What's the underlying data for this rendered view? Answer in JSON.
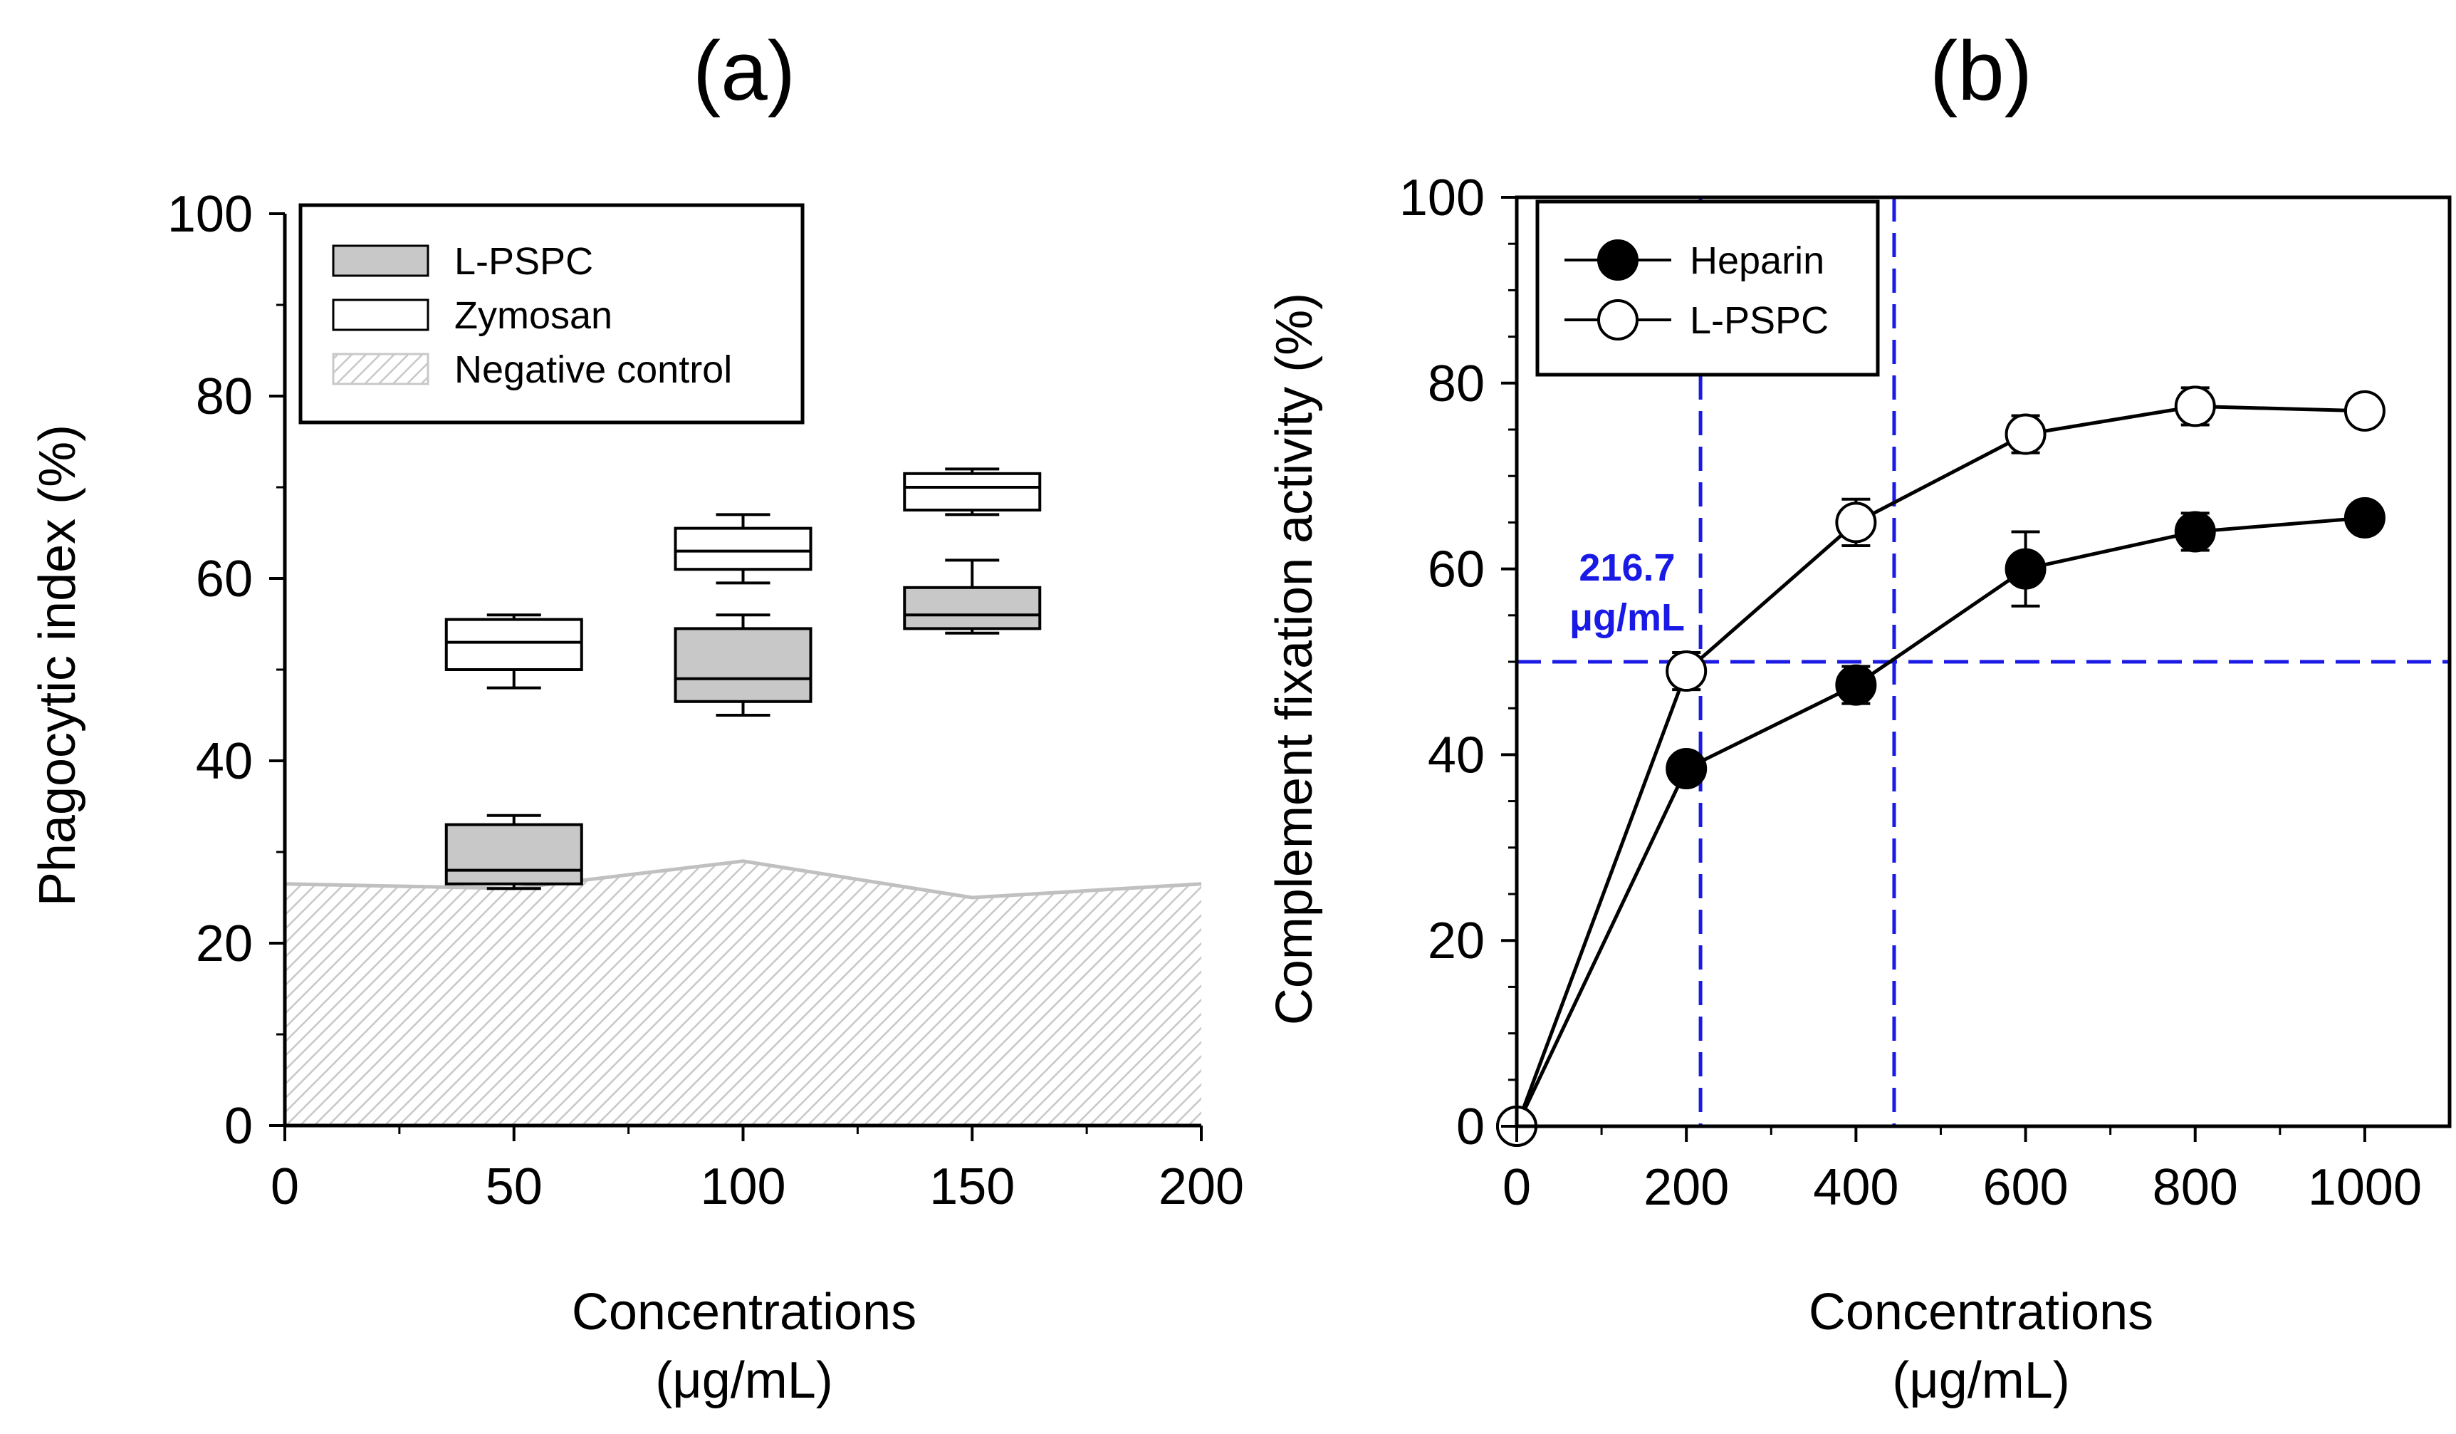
{
  "chart_data": [
    {
      "panel_label": "(a)",
      "type": "box",
      "xlabel_line1": "Concentrations",
      "xlabel_line2": "(μg/mL)",
      "ylabel": "Phagocytic index (%)",
      "xlim": [
        0,
        200
      ],
      "ylim": [
        0,
        100
      ],
      "x_ticks": [
        0,
        50,
        100,
        150,
        200
      ],
      "y_ticks": [
        0,
        20,
        40,
        60,
        80,
        100
      ],
      "legend_position": "top-left",
      "legend": [
        {
          "label": "L-PSPC",
          "swatch": "gray"
        },
        {
          "label": "Zymosan",
          "swatch": "white"
        },
        {
          "label": "Negative control",
          "swatch": "hatched"
        }
      ],
      "negative_control": {
        "name": "Negative control",
        "x": [
          0,
          50,
          100,
          150,
          200
        ],
        "y": [
          26.5,
          26.0,
          29.0,
          25.0,
          26.5
        ]
      },
      "series": [
        {
          "name": "L-PSPC",
          "fill": "#c8c8c8",
          "boxes": [
            {
              "x": 50,
              "whisker_low": 26,
              "q1": 26.5,
              "median": 28,
              "q3": 33,
              "whisker_high": 34
            },
            {
              "x": 100,
              "whisker_low": 45,
              "q1": 46.5,
              "median": 49,
              "q3": 54.5,
              "whisker_high": 56
            },
            {
              "x": 150,
              "whisker_low": 54,
              "q1": 54.5,
              "median": 56,
              "q3": 59,
              "whisker_high": 62
            }
          ]
        },
        {
          "name": "Zymosan",
          "fill": "#ffffff",
          "boxes": [
            {
              "x": 50,
              "whisker_low": 48,
              "q1": 50,
              "median": 53,
              "q3": 55.5,
              "whisker_high": 56
            },
            {
              "x": 100,
              "whisker_low": 59.5,
              "q1": 61,
              "median": 63,
              "q3": 65.5,
              "whisker_high": 67
            },
            {
              "x": 150,
              "whisker_low": 67,
              "q1": 67.5,
              "median": 70,
              "q3": 71.5,
              "whisker_high": 72
            }
          ]
        }
      ]
    },
    {
      "panel_label": "(b)",
      "type": "line",
      "xlabel_line1": "Concentrations",
      "xlabel_line2": "(μg/mL)",
      "ylabel": "Complement fixation activity (%)",
      "xlim": [
        0,
        1100
      ],
      "ylim": [
        0,
        100
      ],
      "x_ticks": [
        0,
        200,
        400,
        600,
        800,
        1000
      ],
      "y_ticks": [
        0,
        20,
        40,
        60,
        80,
        100
      ],
      "legend_position": "top-left",
      "series": [
        {
          "name": "Heparin",
          "marker": "filled-circle",
          "x": [
            0,
            200,
            400,
            600,
            800,
            1000
          ],
          "y": [
            0,
            38.5,
            47.5,
            60,
            64,
            65.5
          ],
          "err": [
            0,
            1,
            2,
            4,
            2,
            1
          ]
        },
        {
          "name": "L-PSPC",
          "marker": "open-circle",
          "x": [
            0,
            200,
            400,
            600,
            800,
            1000
          ],
          "y": [
            0,
            49,
            65,
            74.5,
            77.5,
            77
          ],
          "err": [
            0,
            2,
            2.5,
            2,
            2,
            1
          ]
        }
      ],
      "reference_lines": {
        "y": 50,
        "x": [
          216.7,
          445
        ],
        "color": "#1a1ae6"
      },
      "annotation": {
        "line1": "216.7",
        "line2": "μg/mL"
      }
    }
  ]
}
